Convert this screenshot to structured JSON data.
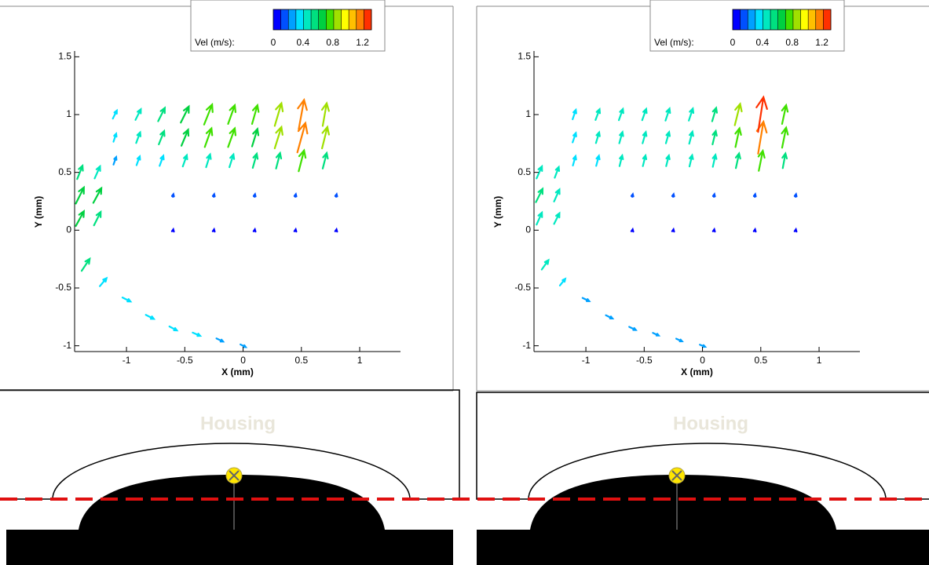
{
  "chart_data": [
    {
      "type": "quiver",
      "xlabel": "X (mm)",
      "ylabel": "Y (mm)",
      "xlim": [
        -1.445,
        1.35
      ],
      "ylim": [
        -1.05,
        1.55
      ],
      "xticks": [
        -1,
        -0.5,
        0,
        0.5,
        1
      ],
      "yticks": [
        -1,
        -0.5,
        0,
        0.5,
        1,
        1.5
      ],
      "x": [
        -1.1,
        -0.9,
        -0.7,
        -0.5,
        -0.3,
        -0.1,
        0.1,
        0.3,
        0.5,
        0.7,
        -1.1,
        -0.9,
        -0.7,
        -0.5,
        -0.3,
        -0.1,
        0.1,
        0.3,
        0.5,
        0.7,
        -1.1,
        -0.9,
        -0.7,
        -0.5,
        -0.3,
        -0.1,
        0.1,
        0.3,
        0.5,
        0.7,
        -1.4,
        -1.25,
        -1.4,
        -1.25,
        -1.4,
        -1.25,
        -1.35,
        -1.2,
        -1.0,
        -0.8,
        -0.6,
        -0.4,
        -0.2,
        0,
        -0.6,
        -0.25,
        0.1,
        0.45,
        0.8,
        -0.6,
        -0.25,
        0.1,
        0.45,
        0.8
      ],
      "y": [
        0.6,
        0.6,
        0.6,
        0.6,
        0.6,
        0.6,
        0.6,
        0.6,
        0.6,
        0.6,
        0.8,
        0.8,
        0.8,
        0.8,
        0.8,
        0.8,
        0.8,
        0.8,
        0.8,
        0.8,
        1.0,
        1.0,
        1.0,
        1.0,
        1.0,
        1.0,
        1.0,
        1.0,
        1.0,
        1.0,
        0.1,
        0.1,
        0.3,
        0.3,
        0.5,
        0.5,
        -0.3,
        -0.45,
        -0.6,
        -0.75,
        -0.85,
        -0.9,
        -0.95,
        -1.0,
        0.3,
        0.3,
        0.3,
        0.3,
        0.3,
        0,
        0,
        0,
        0,
        0
      ],
      "u": [
        0.1,
        0.12,
        0.14,
        0.15,
        0.15,
        0.15,
        0.15,
        0.15,
        0.2,
        0.15,
        0.1,
        0.15,
        0.2,
        0.25,
        0.25,
        0.25,
        0.2,
        0.25,
        0.3,
        0.2,
        0.15,
        0.2,
        0.25,
        0.3,
        0.3,
        0.25,
        0.2,
        0.25,
        0.2,
        0.15,
        0.3,
        0.25,
        0.3,
        0.3,
        0.2,
        0.2,
        0.3,
        0.25,
        0.3,
        0.3,
        0.28,
        0.28,
        0.25,
        0.2,
        0.02,
        0.02,
        0.02,
        0.02,
        0.02,
        0.01,
        0.01,
        0.01,
        0.01,
        0.01
      ],
      "v": [
        0.28,
        0.33,
        0.38,
        0.42,
        0.48,
        0.48,
        0.53,
        0.58,
        0.78,
        0.58,
        0.3,
        0.4,
        0.5,
        0.6,
        0.7,
        0.7,
        0.65,
        0.8,
        1.1,
        0.8,
        0.3,
        0.4,
        0.5,
        0.6,
        0.75,
        0.7,
        0.7,
        0.85,
        1.1,
        0.85,
        0.55,
        0.5,
        0.6,
        0.55,
        0.5,
        0.45,
        0.45,
        0.3,
        -0.15,
        -0.15,
        -0.15,
        -0.12,
        -0.12,
        -0.1,
        0.1,
        0.1,
        0.1,
        0.1,
        0.1,
        0.06,
        0.06,
        0.06,
        0.06,
        0.06
      ],
      "colorbar": {
        "label": "Vel (m/s):",
        "ticks": [
          0,
          0.4,
          0.8,
          1.2
        ],
        "lim": [
          0,
          1.32
        ],
        "colors": [
          "#0000ff",
          "#0050ff",
          "#00a0ff",
          "#00e0ff",
          "#00e8c0",
          "#00e080",
          "#00d040",
          "#40e000",
          "#a0e000",
          "#ffff00",
          "#ffc000",
          "#ff8000",
          "#ff3000"
        ]
      }
    },
    {
      "type": "quiver",
      "xlabel": "X (mm)",
      "ylabel": "Y (mm)",
      "xlim": [
        -1.445,
        1.35
      ],
      "ylim": [
        -1.05,
        1.55
      ],
      "xticks": [
        -1,
        -0.5,
        0,
        0.5,
        1
      ],
      "yticks": [
        -1,
        -0.5,
        0,
        0.5,
        1,
        1.5
      ],
      "x": [
        -1.1,
        -0.9,
        -0.7,
        -0.5,
        -0.3,
        -0.1,
        0.1,
        0.3,
        0.5,
        0.7,
        -1.1,
        -0.9,
        -0.7,
        -0.5,
        -0.3,
        -0.1,
        0.1,
        0.3,
        0.5,
        0.7,
        -1.1,
        -0.9,
        -0.7,
        -0.5,
        -0.3,
        -0.1,
        0.1,
        0.3,
        0.5,
        0.7,
        -1.4,
        -1.25,
        -1.4,
        -1.25,
        -1.4,
        -1.25,
        -1.35,
        -1.2,
        -1.0,
        -0.8,
        -0.6,
        -0.4,
        -0.2,
        0,
        -0.6,
        -0.25,
        0.1,
        0.45,
        0.8,
        -0.6,
        -0.25,
        0.1,
        0.45,
        0.8
      ],
      "y": [
        0.6,
        0.6,
        0.6,
        0.6,
        0.6,
        0.6,
        0.6,
        0.6,
        0.6,
        0.6,
        0.8,
        0.8,
        0.8,
        0.8,
        0.8,
        0.8,
        0.8,
        0.8,
        0.8,
        0.8,
        1.0,
        1.0,
        1.0,
        1.0,
        1.0,
        1.0,
        1.0,
        1.0,
        1.0,
        1.0,
        0.1,
        0.1,
        0.3,
        0.3,
        0.5,
        0.5,
        -0.3,
        -0.45,
        -0.6,
        -0.75,
        -0.85,
        -0.9,
        -0.95,
        -1.0,
        0.3,
        0.3,
        0.3,
        0.3,
        0.3,
        0,
        0,
        0,
        0,
        0
      ],
      "u": [
        0.1,
        0.1,
        0.1,
        0.1,
        0.1,
        0.1,
        0.1,
        0.12,
        0.15,
        0.1,
        0.12,
        0.12,
        0.12,
        0.12,
        0.12,
        0.12,
        0.12,
        0.15,
        0.2,
        0.15,
        0.12,
        0.15,
        0.15,
        0.15,
        0.15,
        0.15,
        0.15,
        0.2,
        0.2,
        0.15,
        0.2,
        0.2,
        0.25,
        0.2,
        0.2,
        0.15,
        0.25,
        0.2,
        0.25,
        0.25,
        0.25,
        0.22,
        0.22,
        0.2,
        0.02,
        0.02,
        0.02,
        0.02,
        0.02,
        0.01,
        0.01,
        0.01,
        0.01,
        0.01
      ],
      "v": [
        0.35,
        0.38,
        0.4,
        0.4,
        0.4,
        0.42,
        0.45,
        0.55,
        0.75,
        0.55,
        0.35,
        0.4,
        0.42,
        0.42,
        0.42,
        0.45,
        0.5,
        0.7,
        1.2,
        0.75,
        0.35,
        0.4,
        0.42,
        0.42,
        0.45,
        0.45,
        0.5,
        0.8,
        1.3,
        0.7,
        0.45,
        0.4,
        0.5,
        0.45,
        0.45,
        0.4,
        0.35,
        0.25,
        -0.12,
        -0.12,
        -0.12,
        -0.1,
        -0.1,
        -0.08,
        0.1,
        0.1,
        0.1,
        0.1,
        0.1,
        0.06,
        0.06,
        0.06,
        0.06,
        0.06
      ],
      "colorbar": {
        "label": "Vel (m/s):",
        "ticks": [
          0,
          0.4,
          0.8,
          1.2
        ],
        "lim": [
          0,
          1.32
        ],
        "colors": [
          "#0000ff",
          "#0050ff",
          "#00a0ff",
          "#00e0ff",
          "#00e8c0",
          "#00e080",
          "#00d040",
          "#40e000",
          "#a0e000",
          "#ffff00",
          "#ffc000",
          "#ff8000",
          "#ff3000"
        ]
      }
    }
  ],
  "diagrams": [
    {
      "label": "Housing"
    },
    {
      "label": "Housing"
    }
  ]
}
